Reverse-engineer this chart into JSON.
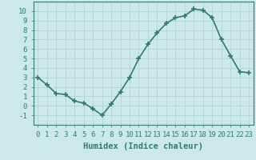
{
  "x": [
    0,
    1,
    2,
    3,
    4,
    5,
    6,
    7,
    8,
    9,
    10,
    11,
    12,
    13,
    14,
    15,
    16,
    17,
    18,
    19,
    20,
    21,
    22,
    23
  ],
  "y": [
    3.0,
    2.2,
    1.3,
    1.2,
    0.5,
    0.3,
    -0.3,
    -1.0,
    0.2,
    1.5,
    3.0,
    5.0,
    6.5,
    7.7,
    8.7,
    9.3,
    9.5,
    10.2,
    10.1,
    9.3,
    7.0,
    5.3,
    3.6,
    3.5
  ],
  "line_color": "#2e7d6e",
  "marker_color": "#2e7d6e",
  "bg_color": "#cce8e8",
  "grid_color": "#aacfcf",
  "xlabel": "Humidex (Indice chaleur)",
  "ylim": [
    -2,
    11
  ],
  "xlim": [
    -0.5,
    23.5
  ],
  "yticks": [
    -1,
    0,
    1,
    2,
    3,
    4,
    5,
    6,
    7,
    8,
    9,
    10
  ],
  "xticks": [
    0,
    1,
    2,
    3,
    4,
    5,
    6,
    7,
    8,
    9,
    10,
    11,
    12,
    13,
    14,
    15,
    16,
    17,
    18,
    19,
    20,
    21,
    22,
    23
  ],
  "xtick_labels": [
    "0",
    "1",
    "2",
    "3",
    "4",
    "5",
    "6",
    "7",
    "8",
    "9",
    "10",
    "11",
    "12",
    "13",
    "14",
    "15",
    "16",
    "17",
    "18",
    "19",
    "20",
    "21",
    "22",
    "23"
  ],
  "xlabel_fontsize": 7.5,
  "tick_fontsize": 6.5,
  "line_width": 1.2,
  "marker_size": 4
}
